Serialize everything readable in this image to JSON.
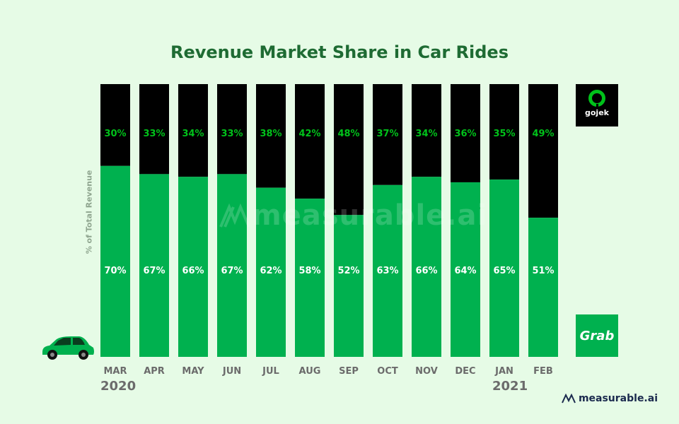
{
  "title": "Revenue Market Share in Car Rides",
  "y_axis_label": "% of Total Revenue",
  "watermark_text": "measurable.ai",
  "footer_brand": "measurable.ai",
  "year_labels": {
    "start": "2020",
    "end": "2021"
  },
  "logos": {
    "top": "gojek",
    "bottom": "Grab"
  },
  "colors": {
    "background": "#e6fbe6",
    "title": "#1e6b33",
    "grab_series": "#00b14f",
    "gojek_series": "#000000",
    "gojek_label": "#00c21a",
    "grab_label": "#ffffff",
    "tick_label": "#6b6b6b"
  },
  "chart_data": {
    "type": "bar",
    "stacked": true,
    "title": "Revenue Market Share in Car Rides",
    "ylabel": "% of Total Revenue",
    "xlabel": "",
    "ylim": [
      0,
      100
    ],
    "categories": [
      "MAR",
      "APR",
      "MAY",
      "JUN",
      "JUL",
      "AUG",
      "SEP",
      "OCT",
      "NOV",
      "DEC",
      "JAN",
      "FEB"
    ],
    "series": [
      {
        "name": "Grab",
        "values": [
          70,
          67,
          66,
          67,
          62,
          58,
          52,
          63,
          66,
          64,
          65,
          51
        ]
      },
      {
        "name": "gojek",
        "values": [
          30,
          33,
          34,
          33,
          38,
          42,
          48,
          37,
          34,
          36,
          35,
          49
        ]
      }
    ],
    "value_labels": true,
    "value_suffix": "%",
    "grid": false,
    "legend": "logos on right"
  }
}
